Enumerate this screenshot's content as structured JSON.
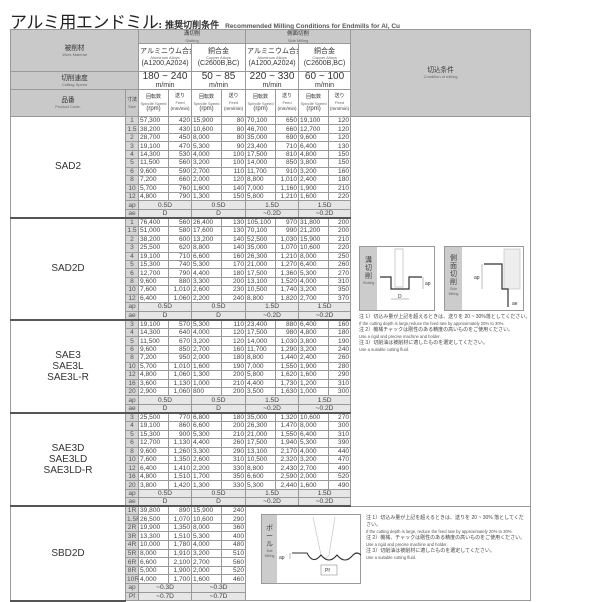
{
  "header": {
    "title": "アルミ用エンドミル",
    "subtitle": ": 推奨切削条件",
    "title_en": "Recommended Milling Conditions for Endmills for Al, Cu"
  },
  "columns": {
    "work_material": {
      "ja": "被削材",
      "en": "Work Material"
    },
    "slotting": {
      "ja": "溝切削",
      "en": "Slotting"
    },
    "side": {
      "ja": "側面切削",
      "en": "Side Milling"
    },
    "materials": [
      {
        "ja": "アルミニウム合金",
        "en": "Aluminum Alloys",
        "grade": "(A1200,A2024)"
      },
      {
        "ja": "銅合金",
        "en": "Copper Alloys",
        "grade": "(C2600B,BC)"
      },
      {
        "ja": "アルミニウム合金",
        "en": "Aluminum Alloys",
        "grade": "(A1200,A2024)"
      },
      {
        "ja": "銅合金",
        "en": "Copper Alloys",
        "grade": "(C2600B,BC)"
      }
    ],
    "cutting_speed": {
      "ja": "切削速度",
      "en": "Cutting Speed"
    },
    "speeds": [
      "180 ~ 240",
      "50 ~ 85",
      "220 ~ 330",
      "60 ~ 100"
    ],
    "speed_unit": "m/min",
    "product_code": {
      "ja": "品番",
      "en": "Product Code."
    },
    "size": {
      "ja": "寸法",
      "en": "Size"
    },
    "spindle": {
      "ja": "回転数",
      "en": "Spindle Speed",
      "unit": "(rpm)"
    },
    "feed": {
      "ja": "送り",
      "en": "Feed",
      "unit": "(mm/min)"
    },
    "condition": {
      "ja": "切込条件",
      "en": "Condition of milling"
    }
  },
  "sections": [
    {
      "product": [
        "SAD2"
      ],
      "rows": [
        [
          "1",
          "57,300",
          "420",
          "15,900",
          "80",
          "70,100",
          "650",
          "19,100",
          "120"
        ],
        [
          "1.5",
          "38,200",
          "430",
          "10,600",
          "80",
          "46,700",
          "660",
          "12,700",
          "120"
        ],
        [
          "2",
          "28,700",
          "450",
          "8,000",
          "80",
          "35,000",
          "690",
          "9,600",
          "120"
        ],
        [
          "3",
          "19,100",
          "470",
          "5,300",
          "90",
          "23,400",
          "710",
          "6,400",
          "130"
        ],
        [
          "4",
          "14,300",
          "530",
          "4,000",
          "100",
          "17,500",
          "810",
          "4,800",
          "150"
        ],
        [
          "5",
          "11,500",
          "560",
          "3,200",
          "100",
          "14,000",
          "850",
          "3,800",
          "150"
        ],
        [
          "6",
          "9,600",
          "590",
          "2,700",
          "110",
          "11,700",
          "910",
          "3,200",
          "160"
        ],
        [
          "8",
          "7,200",
          "660",
          "2,000",
          "120",
          "8,800",
          "1,010",
          "2,400",
          "180"
        ],
        [
          "10",
          "5,700",
          "760",
          "1,600",
          "140",
          "7,000",
          "1,160",
          "1,900",
          "210"
        ],
        [
          "12",
          "4,800",
          "790",
          "1,300",
          "150",
          "5,800",
          "1,210",
          "1,600",
          "220"
        ]
      ],
      "extra": [
        [
          "ap",
          "0.5D",
          "0.5D",
          "1.5D",
          "1.5D"
        ],
        [
          "ae",
          "D",
          "D",
          "~0.2D",
          "~0.2D"
        ]
      ]
    },
    {
      "product": [
        "SAD2D"
      ],
      "rows": [
        [
          "1",
          "76,400",
          "560",
          "26,400",
          "130",
          "105,100",
          "970",
          "31,800",
          "200"
        ],
        [
          "1.5",
          "51,000",
          "580",
          "17,600",
          "130",
          "70,100",
          "990",
          "21,200",
          "200"
        ],
        [
          "2",
          "38,200",
          "600",
          "13,200",
          "140",
          "52,500",
          "1,030",
          "15,900",
          "210"
        ],
        [
          "3",
          "25,500",
          "620",
          "8,800",
          "140",
          "35,000",
          "1,070",
          "10,600",
          "220"
        ],
        [
          "4",
          "19,100",
          "710",
          "6,600",
          "160",
          "26,300",
          "1,210",
          "8,000",
          "250"
        ],
        [
          "5",
          "15,300",
          "740",
          "5,300",
          "170",
          "21,000",
          "1,270",
          "6,400",
          "260"
        ],
        [
          "6",
          "12,700",
          "790",
          "4,400",
          "180",
          "17,500",
          "1,360",
          "5,300",
          "270"
        ],
        [
          "8",
          "9,600",
          "880",
          "3,300",
          "200",
          "13,100",
          "1,520",
          "4,000",
          "310"
        ],
        [
          "10",
          "7,600",
          "1,010",
          "2,600",
          "230",
          "10,500",
          "1,740",
          "3,200",
          "350"
        ],
        [
          "12",
          "6,400",
          "1,060",
          "2,200",
          "240",
          "8,800",
          "1,820",
          "2,700",
          "370"
        ]
      ],
      "extra": [
        [
          "ap",
          "0.5D",
          "0.5D",
          "1.5D",
          "1.5D"
        ],
        [
          "ae",
          "D",
          "D",
          "~0.2D",
          "~0.2D"
        ]
      ]
    },
    {
      "product": [
        "SAE3",
        "SAE3L",
        "SAE3L-R"
      ],
      "rows": [
        [
          "3",
          "19,100",
          "570",
          "5,300",
          "110",
          "23,400",
          "880",
          "6,400",
          "160"
        ],
        [
          "4",
          "14,300",
          "640",
          "4,000",
          "120",
          "17,500",
          "980",
          "4,800",
          "180"
        ],
        [
          "5",
          "11,500",
          "670",
          "3,200",
          "120",
          "14,000",
          "1,030",
          "3,800",
          "190"
        ],
        [
          "6",
          "9,600",
          "850",
          "2,700",
          "160",
          "11,700",
          "1,290",
          "3,200",
          "240"
        ],
        [
          "8",
          "7,200",
          "950",
          "2,000",
          "180",
          "8,800",
          "1,440",
          "2,400",
          "260"
        ],
        [
          "10",
          "5,700",
          "1,010",
          "1,600",
          "190",
          "7,000",
          "1,550",
          "1,900",
          "280"
        ],
        [
          "12",
          "4,800",
          "1,060",
          "1,300",
          "200",
          "5,800",
          "1,620",
          "1,600",
          "290"
        ],
        [
          "16",
          "3,600",
          "1,130",
          "1,000",
          "210",
          "4,400",
          "1,730",
          "1,200",
          "310"
        ],
        [
          "20",
          "2,900",
          "1,060",
          "800",
          "200",
          "3,500",
          "1,630",
          "1,000",
          "300"
        ]
      ],
      "extra": [
        [
          "ap",
          "0.5D",
          "0.5D",
          "1.5D",
          "1.5D"
        ],
        [
          "ae",
          "D",
          "D",
          "~0.2D",
          "~0.2D"
        ]
      ]
    },
    {
      "product": [
        "SAE3D",
        "SAE3LD",
        "SAE3LD-R"
      ],
      "rows": [
        [
          "3",
          "25,500",
          "770",
          "6,800",
          "180",
          "35,000",
          "1,320",
          "10,600",
          "270"
        ],
        [
          "4",
          "19,100",
          "860",
          "6,600",
          "200",
          "26,300",
          "1,470",
          "8,000",
          "300"
        ],
        [
          "5",
          "15,300",
          "900",
          "5,300",
          "210",
          "21,000",
          "1,550",
          "6,400",
          "310"
        ],
        [
          "6",
          "12,700",
          "1,130",
          "4,400",
          "260",
          "17,500",
          "1,940",
          "5,300",
          "390"
        ],
        [
          "8",
          "9,600",
          "1,260",
          "3,300",
          "290",
          "13,100",
          "2,170",
          "4,000",
          "440"
        ],
        [
          "10",
          "7,600",
          "1,350",
          "2,600",
          "310",
          "10,500",
          "2,320",
          "3,200",
          "470"
        ],
        [
          "12",
          "6,400",
          "1,410",
          "2,200",
          "330",
          "8,800",
          "2,430",
          "2,700",
          "490"
        ],
        [
          "16",
          "4,800",
          "1,510",
          "1,700",
          "350",
          "6,600",
          "2,590",
          "2,000",
          "520"
        ],
        [
          "20",
          "3,800",
          "1,420",
          "1,300",
          "330",
          "5,300",
          "2,440",
          "1,600",
          "490"
        ]
      ],
      "extra": [
        [
          "ap",
          "0.5D",
          "0.5D",
          "1.5D",
          "1.5D"
        ],
        [
          "ae",
          "D",
          "D",
          "~0.2D",
          "~0.2D"
        ]
      ]
    }
  ],
  "ball_section": {
    "product": [
      "SBD2D"
    ],
    "rows": [
      [
        "1R",
        "39,800",
        "890",
        "15,900",
        "240"
      ],
      [
        "1.5R",
        "26,500",
        "1,070",
        "10,600",
        "290"
      ],
      [
        "2R",
        "19,900",
        "1,350",
        "8,000",
        "360"
      ],
      [
        "3R",
        "13,300",
        "1,510",
        "5,300",
        "400"
      ],
      [
        "4R",
        "10,000",
        "1,780",
        "4,000",
        "480"
      ],
      [
        "5R",
        "8,000",
        "1,910",
        "3,200",
        "510"
      ],
      [
        "6R",
        "6,600",
        "2,100",
        "2,700",
        "560"
      ],
      [
        "8R",
        "5,000",
        "1,900",
        "2,000",
        "520"
      ],
      [
        "10R",
        "4,000",
        "1,700",
        "1,600",
        "460"
      ]
    ],
    "extra": [
      [
        "ap",
        "~0.3D",
        "~0.3D"
      ],
      [
        "Pf",
        "~0.7D",
        "~0.7D"
      ]
    ]
  },
  "diagrams": {
    "slotting": {
      "ja": "溝切削",
      "en": "Slotting",
      "ap": "ap",
      "d": "D"
    },
    "side": {
      "ja": "側面切削",
      "en": "Side Milling",
      "ap": "ap",
      "ae": "ae"
    },
    "ball": {
      "ja": "ボール",
      "en": "Ball Milling",
      "ap": "ap",
      "pf": "Pf"
    }
  },
  "notes_top": [
    {
      "ja": "注 1）切込み量が上記を超えるときは、送りを 20 ~ 30%落としてください。",
      "en": "If the cutting depth is large,reduce the feed rate by approximately 20% to 30%."
    },
    {
      "ja": "注 2）機械チャックは剛性のある精度の高いものをご使用ください。",
      "en": "Use a rigid and precise machine and holder."
    },
    {
      "ja": "注 3）切削油は被削材に適したものを選定してください。",
      "en": "Use a suitable cutting fluid."
    }
  ],
  "notes_bottom": [
    {
      "ja": "注 1）切込み量が上記を超えるときは、送りを 20 ~ 30% 落としてください。",
      "en": "If the cutting depth is large, reduce the feed rate by approximately 20% to 30%."
    },
    {
      "ja": "注 2）機械、チャックは剛性のある精度の高いものをご使用ください。",
      "en": "Use a rigid and precise machine and holder."
    },
    {
      "ja": "注 3）切削油は被削材に適したものを選定してください。",
      "en": "Use a suitable cutting fluid."
    }
  ]
}
